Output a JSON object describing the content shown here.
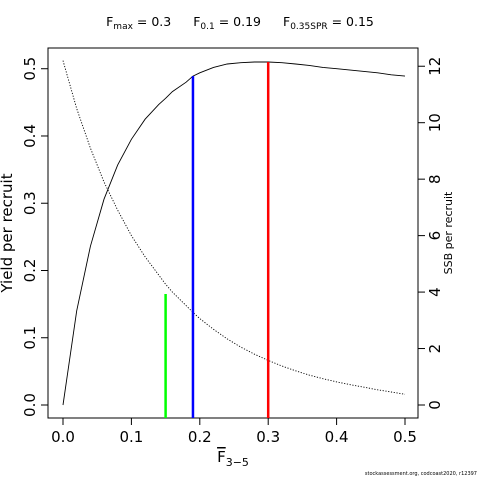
{
  "reference_points": [
    {
      "label": "F",
      "sub": "max",
      "value": "0.3"
    },
    {
      "label": "F",
      "sub": "0.1",
      "value": "0.19"
    },
    {
      "label": "F",
      "sub": "0.35SPR",
      "value": "0.15"
    }
  ],
  "footer": "stockassessment.org, codcoast2020, r12397",
  "chart_data": {
    "type": "line",
    "xlabel": "F",
    "xlabel_sub": "3−5",
    "ylabel": "Yield per recruit",
    "y2label": "SSB per recruit",
    "xlim": [
      0,
      0.5
    ],
    "ylim": [
      0,
      0.51
    ],
    "y2lim": [
      0,
      12.15
    ],
    "xticks": [
      "0.0",
      "0.1",
      "0.2",
      "0.3",
      "0.4",
      "0.5"
    ],
    "yticks": [
      "0.0",
      "0.1",
      "0.2",
      "0.3",
      "0.4",
      "0.5"
    ],
    "y2ticks": [
      "0",
      "2",
      "4",
      "6",
      "8",
      "10",
      "12"
    ],
    "grid": false,
    "series": [
      {
        "axis": "left",
        "line_style": "solid",
        "color": "#000000",
        "x": [
          0,
          0.02,
          0.04,
          0.06,
          0.08,
          0.1,
          0.12,
          0.14,
          0.15,
          0.16,
          0.18,
          0.19,
          0.2,
          0.22,
          0.24,
          0.26,
          0.28,
          0.3,
          0.32,
          0.34,
          0.36,
          0.38,
          0.4,
          0.42,
          0.44,
          0.46,
          0.48,
          0.5
        ],
        "values": [
          0.0,
          0.14,
          0.236,
          0.306,
          0.357,
          0.395,
          0.425,
          0.447,
          0.456,
          0.466,
          0.48,
          0.489,
          0.494,
          0.502,
          0.507,
          0.509,
          0.51,
          0.51,
          0.509,
          0.507,
          0.505,
          0.502,
          0.5,
          0.498,
          0.496,
          0.494,
          0.491,
          0.489
        ]
      },
      {
        "axis": "right",
        "line_style": "dotted",
        "color": "#000000",
        "x": [
          0,
          0.02,
          0.04,
          0.06,
          0.08,
          0.1,
          0.12,
          0.14,
          0.15,
          0.16,
          0.18,
          0.19,
          0.2,
          0.22,
          0.24,
          0.26,
          0.28,
          0.3,
          0.32,
          0.34,
          0.36,
          0.38,
          0.4,
          0.42,
          0.44,
          0.46,
          0.48,
          0.5
        ],
        "values": [
          12.2,
          10.5,
          9.1,
          7.9,
          6.9,
          6.0,
          5.25,
          4.6,
          4.28,
          4.0,
          3.52,
          3.28,
          3.06,
          2.68,
          2.34,
          2.05,
          1.8,
          1.58,
          1.38,
          1.21,
          1.06,
          0.93,
          0.82,
          0.72,
          0.63,
          0.54,
          0.46,
          0.38
        ]
      }
    ],
    "markers": [
      {
        "x": 0.15,
        "y": 0.165,
        "color": "#00ff00"
      },
      {
        "x": 0.19,
        "y": 0.489,
        "color": "#0000ff"
      },
      {
        "x": 0.3,
        "y": 0.51,
        "color": "#ff0000"
      }
    ]
  }
}
